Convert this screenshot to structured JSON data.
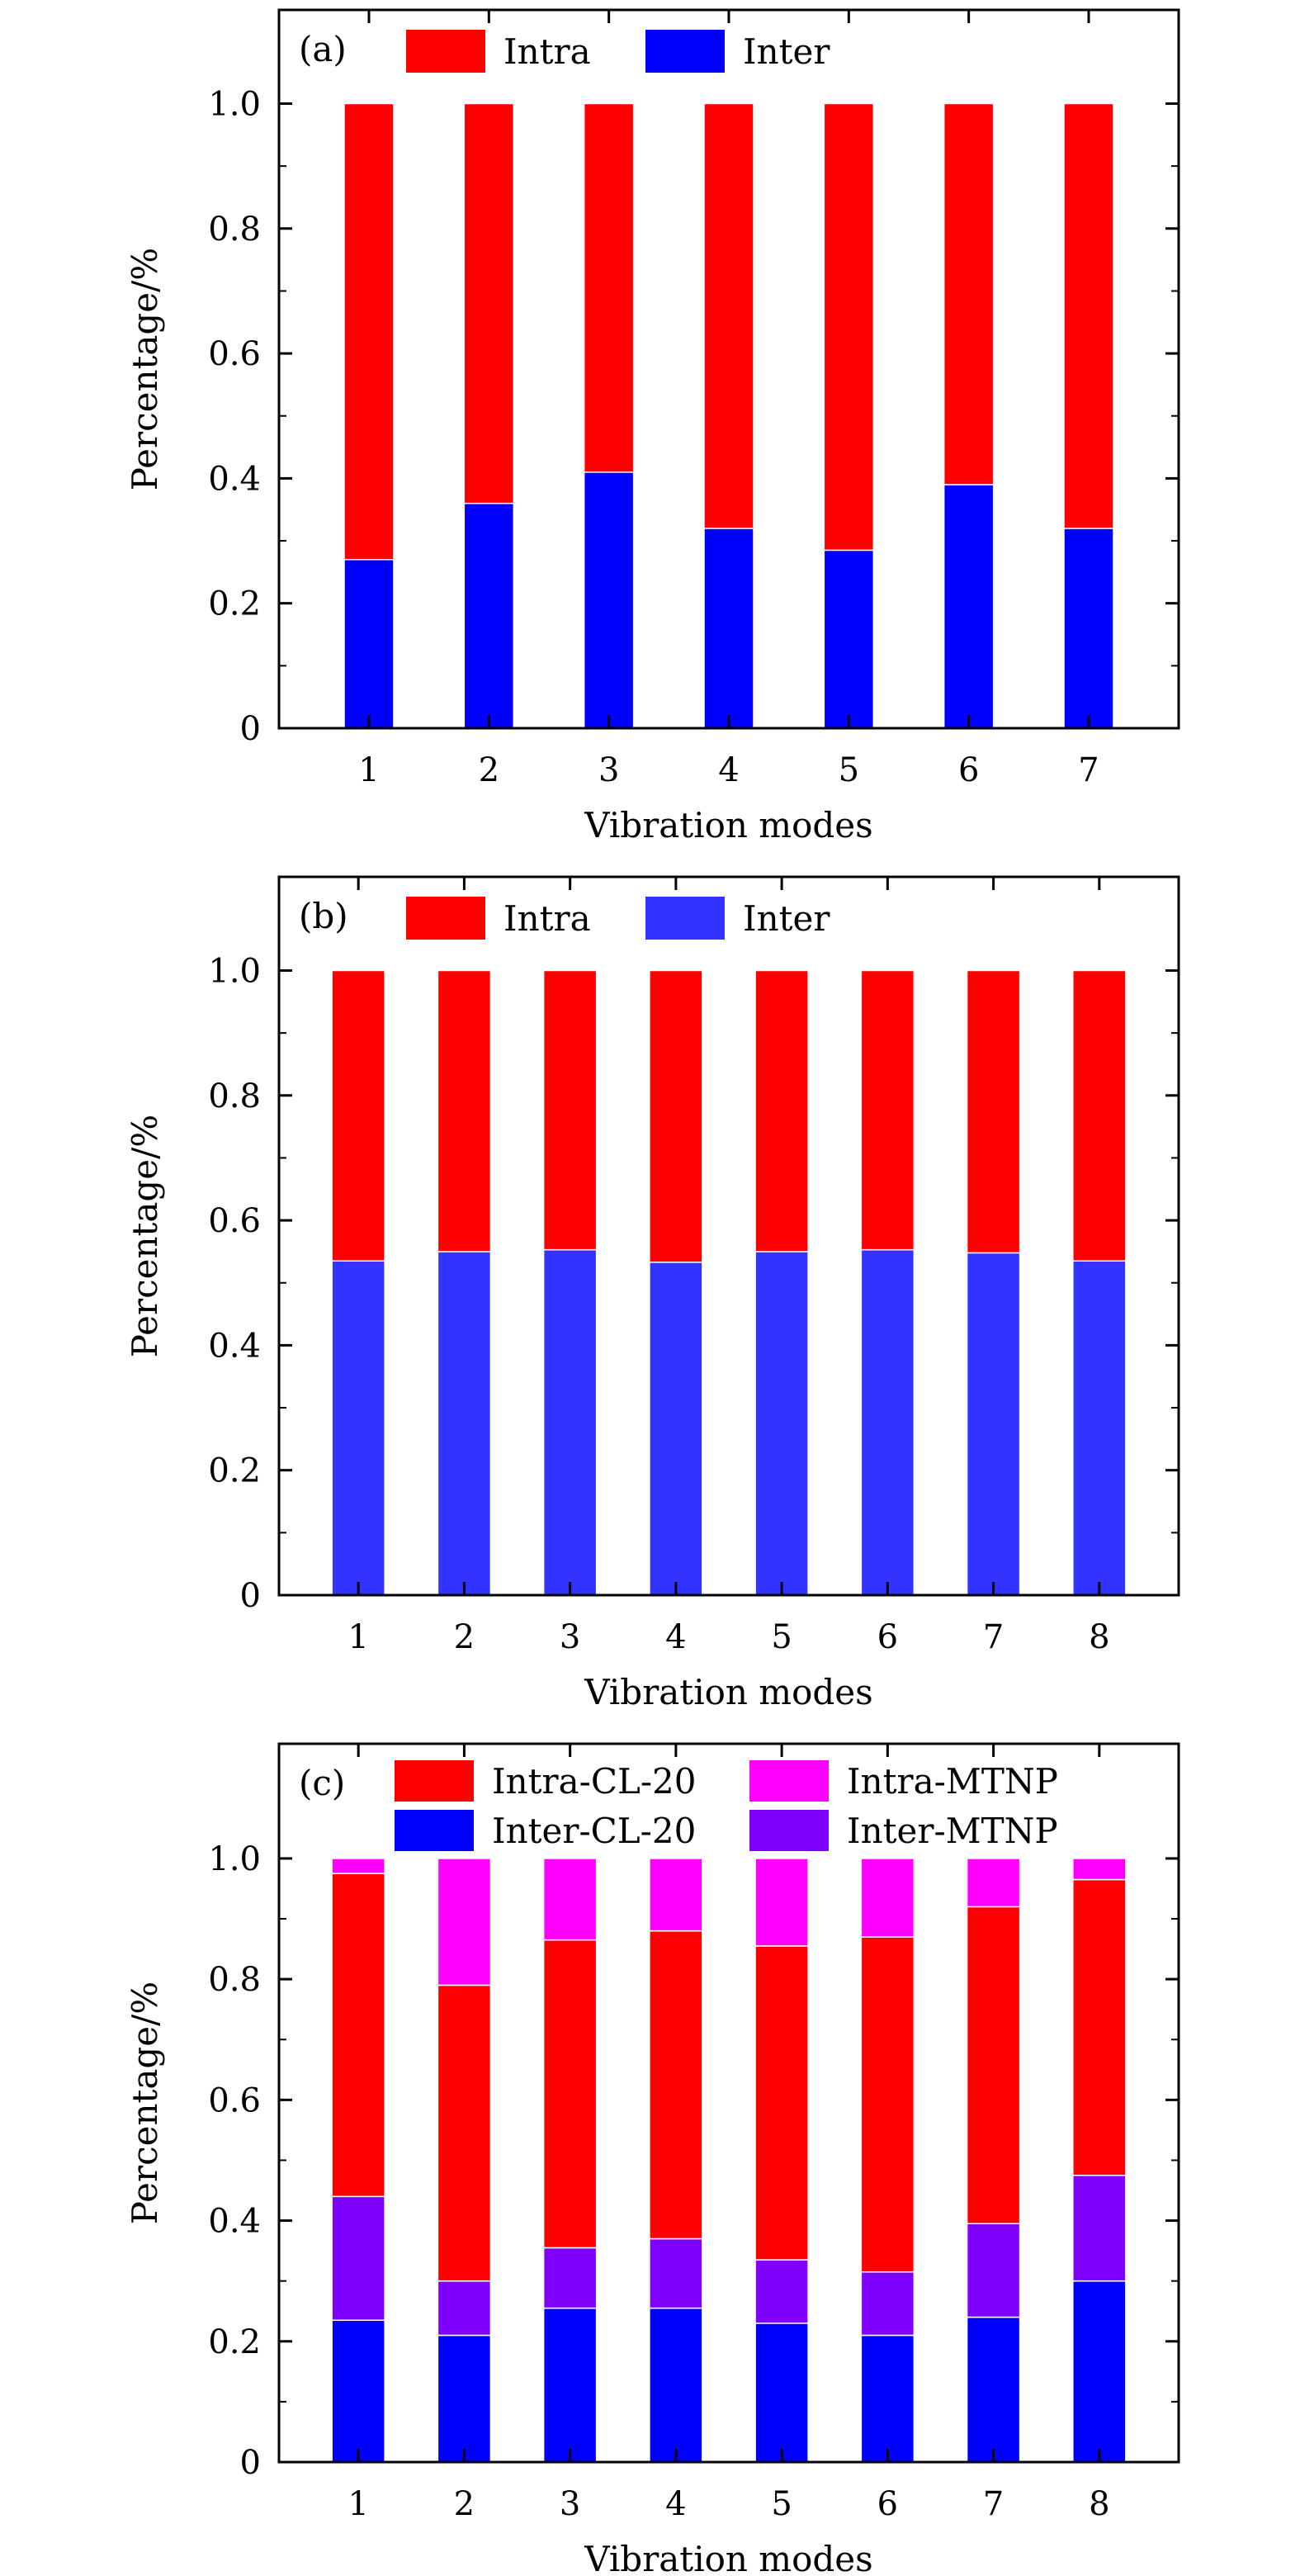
{
  "figure": {
    "panels": [
      "a",
      "b",
      "c"
    ]
  },
  "chart_data": [
    {
      "type": "bar",
      "stacked": true,
      "panel_label": "(a)",
      "categories": [
        "1",
        "2",
        "3",
        "4",
        "5",
        "6",
        "7"
      ],
      "series": [
        {
          "name": "Inter",
          "color": "#0000ff",
          "values": [
            0.27,
            0.36,
            0.41,
            0.32,
            0.285,
            0.39,
            0.32
          ]
        },
        {
          "name": "Intra",
          "color": "#ff0000",
          "values": [
            0.73,
            0.64,
            0.59,
            0.68,
            0.715,
            0.61,
            0.68
          ]
        }
      ],
      "legend_order": [
        "Intra",
        "Inter"
      ],
      "legend_position": "top",
      "xlabel": "Vibration modes",
      "ylabel": "Percentage/%",
      "ylim": [
        0,
        1.15
      ],
      "yticks": [
        "0",
        "0.2",
        "0.4",
        "0.6",
        "0.8",
        "1.0"
      ],
      "grid": false
    },
    {
      "type": "bar",
      "stacked": true,
      "panel_label": "(b)",
      "categories": [
        "1",
        "2",
        "3",
        "4",
        "5",
        "6",
        "7",
        "8"
      ],
      "series": [
        {
          "name": "Inter",
          "color": "#3333ff",
          "values": [
            0.535,
            0.55,
            0.553,
            0.533,
            0.55,
            0.553,
            0.548,
            0.535
          ]
        },
        {
          "name": "Intra",
          "color": "#ff0000",
          "values": [
            0.465,
            0.45,
            0.447,
            0.467,
            0.45,
            0.447,
            0.452,
            0.465
          ]
        }
      ],
      "legend_order": [
        "Intra",
        "Inter"
      ],
      "legend_position": "top",
      "xlabel": "Vibration modes",
      "ylabel": "Percentage/%",
      "ylim": [
        0,
        1.15
      ],
      "yticks": [
        "0",
        "0.2",
        "0.4",
        "0.6",
        "0.8",
        "1.0"
      ],
      "grid": false
    },
    {
      "type": "bar",
      "stacked": true,
      "panel_label": "(c)",
      "categories": [
        "1",
        "2",
        "3",
        "4",
        "5",
        "6",
        "7",
        "8"
      ],
      "series": [
        {
          "name": "Inter-CL-20",
          "color": "#0000ff",
          "values": [
            0.235,
            0.21,
            0.255,
            0.255,
            0.23,
            0.21,
            0.24,
            0.3
          ]
        },
        {
          "name": "Inter-MTNP",
          "color": "#8000ff",
          "values": [
            0.205,
            0.09,
            0.1,
            0.115,
            0.105,
            0.105,
            0.155,
            0.175
          ]
        },
        {
          "name": "Intra-CL-20",
          "color": "#ff0000",
          "values": [
            0.535,
            0.49,
            0.51,
            0.51,
            0.52,
            0.555,
            0.525,
            0.49
          ]
        },
        {
          "name": "Intra-MTNP",
          "color": "#ff00ff",
          "values": [
            0.025,
            0.21,
            0.135,
            0.12,
            0.145,
            0.13,
            0.08,
            0.035
          ]
        }
      ],
      "legend_order": [
        "Intra-CL-20",
        "Intra-MTNP",
        "Inter-CL-20",
        "Inter-MTNP"
      ],
      "legend_position": "top",
      "xlabel": "Vibration modes",
      "ylabel": "Percentage/%",
      "ylim": [
        0,
        1.19
      ],
      "yticks": [
        "0",
        "0.2",
        "0.4",
        "0.6",
        "0.8",
        "1.0"
      ],
      "grid": false
    }
  ]
}
